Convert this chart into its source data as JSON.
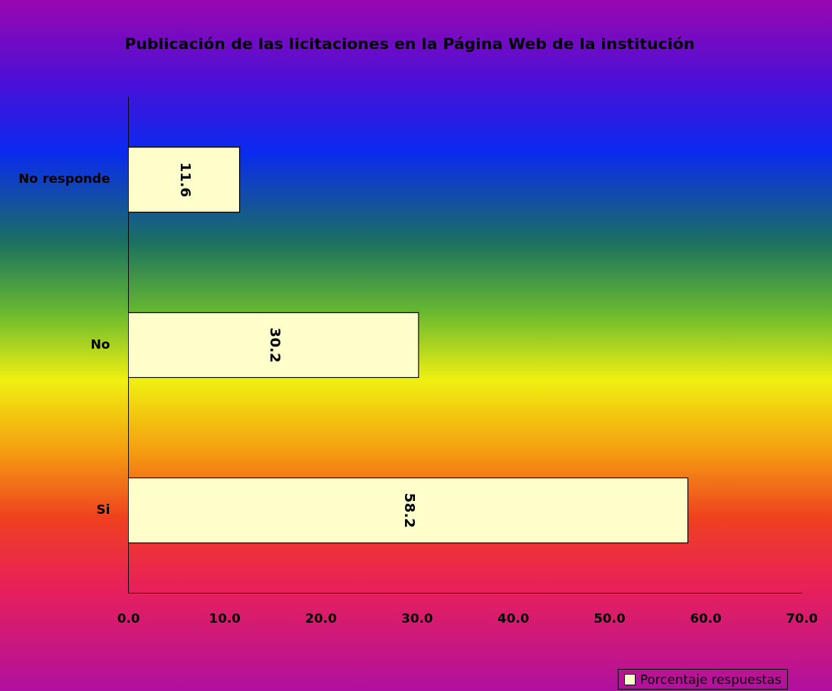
{
  "chart_data": {
    "type": "bar",
    "orientation": "horizontal",
    "title": "Publicación de las licitaciones en la Página Web de la institución",
    "categories": [
      "No responde",
      "No",
      "Si"
    ],
    "series": [
      {
        "name": "Porcentaje respuestas",
        "color": "#ffffcc",
        "values": [
          11.6,
          30.2,
          58.2
        ]
      }
    ],
    "xlim": [
      0,
      70
    ],
    "xticks": [
      {
        "value": 0,
        "label": "0.0"
      },
      {
        "value": 10,
        "label": "10.0"
      },
      {
        "value": 20,
        "label": "20.0"
      },
      {
        "value": 30,
        "label": "30.0"
      },
      {
        "value": 40,
        "label": "40.0"
      },
      {
        "value": 50,
        "label": "50.0"
      },
      {
        "value": 60,
        "label": "60.0"
      },
      {
        "value": 70,
        "label": "70.0"
      }
    ],
    "data_labels": true,
    "grid": false,
    "legend": "bottom right"
  }
}
